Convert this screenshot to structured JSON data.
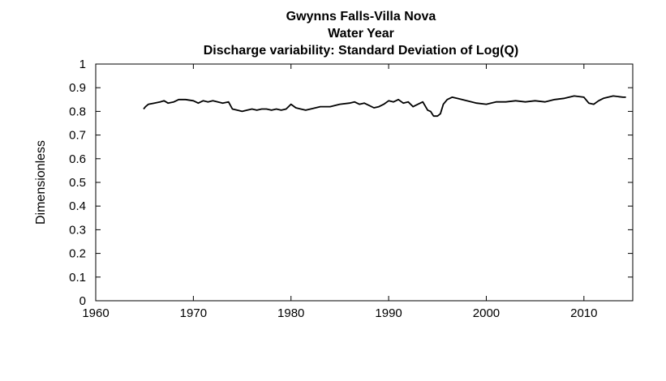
{
  "chart_data": {
    "type": "line",
    "title_lines": [
      "Gwynns Falls-Villa Nova",
      "Water Year",
      "Discharge variability: Standard Deviation of Log(Q)"
    ],
    "xlabel": "",
    "ylabel": "Dimensionless",
    "xlim": [
      1960,
      2015
    ],
    "ylim": [
      0,
      1
    ],
    "x_ticks": [
      1960,
      1970,
      1980,
      1990,
      2000,
      2010
    ],
    "y_ticks": [
      0,
      0.1,
      0.2,
      0.3,
      0.4,
      0.5,
      0.6,
      0.7,
      0.8,
      0.9,
      1
    ],
    "y_tick_labels": [
      "0",
      "0.1",
      "0.2",
      "0.3",
      "0.4",
      "0.5",
      "0.6",
      "0.7",
      "0.8",
      "0.9",
      "1"
    ],
    "grid": false,
    "line_color": "#000000",
    "series": [
      {
        "x": [
          1964.9,
          1965.1,
          1965.4,
          1966.0,
          1966.6,
          1967.0,
          1967.4,
          1968.0,
          1968.5,
          1969.2,
          1970.0,
          1970.5,
          1971.0,
          1971.5,
          1972.0,
          1972.5,
          1973.0,
          1973.6,
          1974.0,
          1974.5,
          1975.0,
          1975.5,
          1976.0,
          1976.5,
          1977.0,
          1977.5,
          1978.0,
          1978.5,
          1979.0,
          1979.5,
          1980.0,
          1980.5,
          1981.0,
          1981.5,
          1982.0,
          1983.0,
          1984.0,
          1985.0,
          1986.0,
          1986.5,
          1987.0,
          1987.5,
          1988.0,
          1988.5,
          1989.0,
          1989.5,
          1990.0,
          1990.5,
          1991.0,
          1991.5,
          1992.0,
          1992.5,
          1993.0,
          1993.5,
          1994.0,
          1994.3,
          1994.6,
          1995.0,
          1995.3,
          1995.6,
          1996.0,
          1996.5,
          1997.0,
          1997.5,
          1998.0,
          1999.0,
          2000.0,
          2001.0,
          2002.0,
          2003.0,
          2004.0,
          2005.0,
          2006.0,
          2007.0,
          2008.0,
          2009.0,
          2010.0,
          2010.5,
          2011.0,
          2011.5,
          2012.0,
          2013.0,
          2014.0,
          2014.3
        ],
        "y": [
          0.81,
          0.82,
          0.83,
          0.835,
          0.84,
          0.845,
          0.835,
          0.84,
          0.85,
          0.85,
          0.845,
          0.835,
          0.845,
          0.84,
          0.845,
          0.84,
          0.835,
          0.84,
          0.81,
          0.805,
          0.8,
          0.805,
          0.81,
          0.805,
          0.81,
          0.81,
          0.805,
          0.81,
          0.805,
          0.81,
          0.83,
          0.815,
          0.81,
          0.805,
          0.81,
          0.82,
          0.82,
          0.83,
          0.835,
          0.84,
          0.83,
          0.835,
          0.825,
          0.815,
          0.82,
          0.83,
          0.845,
          0.84,
          0.85,
          0.835,
          0.84,
          0.82,
          0.83,
          0.84,
          0.805,
          0.8,
          0.78,
          0.78,
          0.79,
          0.83,
          0.85,
          0.86,
          0.855,
          0.85,
          0.845,
          0.835,
          0.83,
          0.84,
          0.84,
          0.845,
          0.84,
          0.845,
          0.84,
          0.85,
          0.855,
          0.865,
          0.86,
          0.835,
          0.83,
          0.845,
          0.855,
          0.865,
          0.86,
          0.86
        ]
      }
    ]
  }
}
